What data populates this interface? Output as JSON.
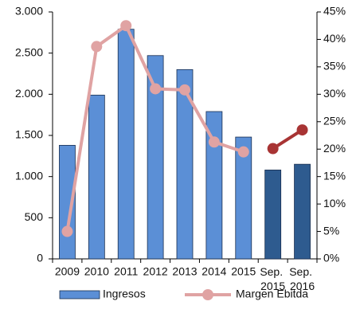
{
  "chart_data": {
    "type": "bar-line",
    "categories": [
      "2009",
      "2010",
      "2011",
      "2012",
      "2013",
      "2014",
      "2015",
      "Sep. 2015",
      "Sep. 2016"
    ],
    "series": [
      {
        "name": "Ingresos",
        "type": "bar",
        "colors": [
          "#5b8fd6",
          "#5b8fd6",
          "#5b8fd6",
          "#5b8fd6",
          "#5b8fd6",
          "#5b8fd6",
          "#5b8fd6",
          "#2e5b8f",
          "#2e5b8f"
        ],
        "values": [
          1380,
          1990,
          2790,
          2470,
          2300,
          1790,
          1480,
          1080,
          1150
        ]
      },
      {
        "name": "Margen Ebitda",
        "type": "line",
        "axis": "y2",
        "colors": [
          "#e0a3a3",
          "#e0a3a3",
          "#e0a3a3",
          "#e0a3a3",
          "#e0a3a3",
          "#e0a3a3",
          "#e0a3a3",
          "#a83434",
          "#a83434"
        ],
        "values": [
          5,
          38.7,
          42.5,
          31,
          30.8,
          21.3,
          19.5,
          20.1,
          23.5
        ]
      }
    ],
    "ylim": [
      0,
      3000
    ],
    "yticks": [
      {
        "value": 0,
        "label": "0"
      },
      {
        "value": 500,
        "label": "500"
      },
      {
        "value": 1000,
        "label": "1.000"
      },
      {
        "value": 1500,
        "label": "1.500"
      },
      {
        "value": 2000,
        "label": "2.000"
      },
      {
        "value": 2500,
        "label": "2.500"
      },
      {
        "value": 3000,
        "label": "3.000"
      }
    ],
    "y2lim": [
      0,
      45
    ],
    "y2ticks": [
      {
        "value": 0,
        "label": "0%"
      },
      {
        "value": 5,
        "label": "5%"
      },
      {
        "value": 10,
        "label": "10%"
      },
      {
        "value": 15,
        "label": "15%"
      },
      {
        "value": 20,
        "label": "20%"
      },
      {
        "value": 25,
        "label": "25%"
      },
      {
        "value": 30,
        "label": "30%"
      },
      {
        "value": 35,
        "label": "35%"
      },
      {
        "value": 40,
        "label": "40%"
      },
      {
        "value": 45,
        "label": "45%"
      }
    ],
    "legend": "bottom"
  }
}
